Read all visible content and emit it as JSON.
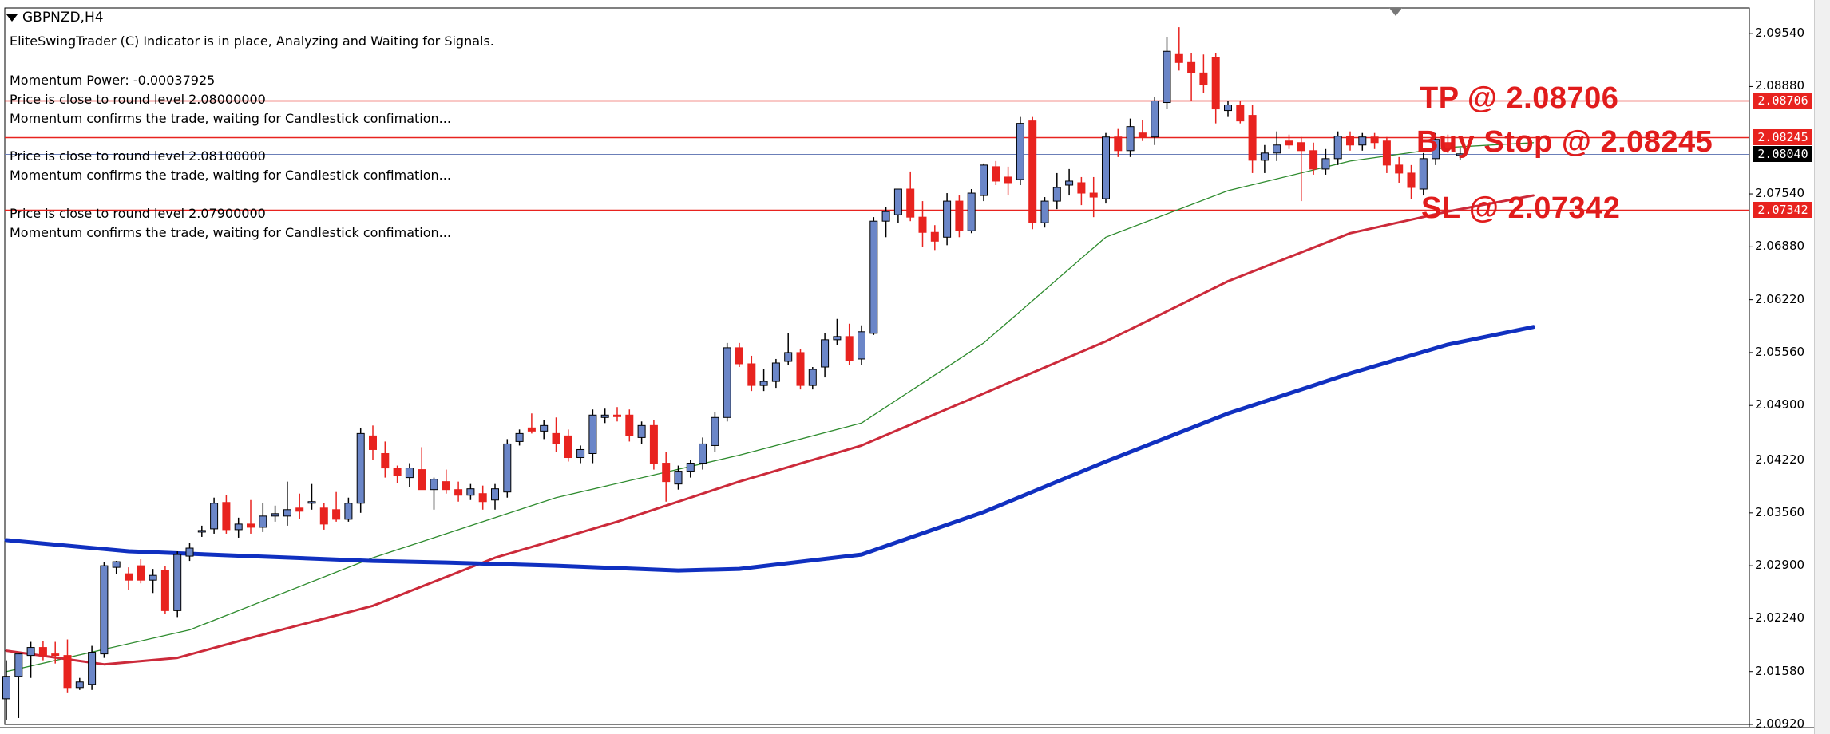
{
  "chart": {
    "symbol": "GBPNZD,H4",
    "comments": {
      "header": "EliteSwingTrader (C) Indicator is in place, Analyzing and Waiting for Signals.",
      "momentum": "Momentum Power: -0.00037925",
      "level1": "Price is close to round level 2.08000000",
      "level1_note": "Momentum confirms the trade, waiting for Candlestick confimation...",
      "level2": "Price is close to round level 2.08100000",
      "level2_note": "Momentum confirms the trade, waiting for Candlestick confimation...",
      "level3": "Price is close to round level 2.07900000",
      "level3_note": "Momentum confirms the trade, waiting for Candlestick confimation..."
    },
    "annotations": {
      "tp": "TP @ 2.08706",
      "buy_stop": "Buy Stop @ 2.08245",
      "sl": "SL @ 2.07342"
    },
    "price_tags": {
      "tp": "2.08706",
      "buy_stop": "2.08245",
      "current": "2.08040",
      "sl": "2.07342"
    },
    "y_axis_labels": [
      "2.09540",
      "2.08880",
      "2.07540",
      "2.06880",
      "2.06220",
      "2.05560",
      "2.04900",
      "2.04220",
      "2.03560",
      "2.02900",
      "2.02240",
      "2.01580",
      "2.00920"
    ],
    "colors": {
      "bull": "#6b86c8",
      "bear": "#e8231f",
      "level_line": "#e8231f",
      "current_line": "#6b7fb8",
      "ma_fast": "#2e8b2e",
      "ma_mid": "#cc2a3a",
      "ma_slow": "#1030c0"
    }
  },
  "chart_data": {
    "type": "line",
    "title": "",
    "xlabel": "",
    "ylabel": "",
    "ylim": [
      2.0092,
      2.0986
    ],
    "y_ticks": [
      2.0954,
      2.0888,
      2.0754,
      2.0688,
      2.0622,
      2.0556,
      2.049,
      2.0422,
      2.0356,
      2.029,
      2.0224,
      2.0158,
      2.0092
    ],
    "horizontal_levels": [
      2.08706,
      2.08245,
      2.0804,
      2.07342
    ],
    "candles": [
      {
        "o": 2.0124,
        "h": 2.0172,
        "l": 2.0098,
        "c": 2.0152
      },
      {
        "o": 2.0152,
        "h": 2.0175,
        "l": 2.01,
        "c": 2.018
      },
      {
        "o": 2.0178,
        "h": 2.0195,
        "l": 2.015,
        "c": 2.0188
      },
      {
        "o": 2.0188,
        "h": 2.0196,
        "l": 2.0172,
        "c": 2.0178
      },
      {
        "o": 2.018,
        "h": 2.0195,
        "l": 2.0168,
        "c": 2.0178
      },
      {
        "o": 2.0178,
        "h": 2.0198,
        "l": 2.0132,
        "c": 2.0138
      },
      {
        "o": 2.0138,
        "h": 2.015,
        "l": 2.0135,
        "c": 2.0145
      },
      {
        "o": 2.0142,
        "h": 2.019,
        "l": 2.0135,
        "c": 2.0182
      },
      {
        "o": 2.018,
        "h": 2.0295,
        "l": 2.0175,
        "c": 2.029
      },
      {
        "o": 2.0288,
        "h": 2.0296,
        "l": 2.028,
        "c": 2.0295
      },
      {
        "o": 2.028,
        "h": 2.0288,
        "l": 2.026,
        "c": 2.0272
      },
      {
        "o": 2.029,
        "h": 2.0298,
        "l": 2.0268,
        "c": 2.0272
      },
      {
        "o": 2.0272,
        "h": 2.0286,
        "l": 2.0256,
        "c": 2.0278
      },
      {
        "o": 2.0284,
        "h": 2.029,
        "l": 2.023,
        "c": 2.0234
      },
      {
        "o": 2.0234,
        "h": 2.0308,
        "l": 2.0226,
        "c": 2.0304
      },
      {
        "o": 2.0302,
        "h": 2.0318,
        "l": 2.0296,
        "c": 2.0312
      },
      {
        "o": 2.0332,
        "h": 2.034,
        "l": 2.0326,
        "c": 2.0334
      },
      {
        "o": 2.0336,
        "h": 2.0375,
        "l": 2.033,
        "c": 2.0368
      },
      {
        "o": 2.0369,
        "h": 2.0378,
        "l": 2.033,
        "c": 2.0335
      },
      {
        "o": 2.0335,
        "h": 2.035,
        "l": 2.0325,
        "c": 2.0342
      },
      {
        "o": 2.0342,
        "h": 2.0372,
        "l": 2.033,
        "c": 2.0338
      },
      {
        "o": 2.0338,
        "h": 2.0368,
        "l": 2.0332,
        "c": 2.0352
      },
      {
        "o": 2.0352,
        "h": 2.0365,
        "l": 2.0345,
        "c": 2.0355
      },
      {
        "o": 2.0352,
        "h": 2.0395,
        "l": 2.034,
        "c": 2.036
      },
      {
        "o": 2.0362,
        "h": 2.038,
        "l": 2.0348,
        "c": 2.0358
      },
      {
        "o": 2.0368,
        "h": 2.0392,
        "l": 2.036,
        "c": 2.037
      },
      {
        "o": 2.0362,
        "h": 2.0368,
        "l": 2.0335,
        "c": 2.0342
      },
      {
        "o": 2.036,
        "h": 2.0382,
        "l": 2.0345,
        "c": 2.0348
      },
      {
        "o": 2.0348,
        "h": 2.0375,
        "l": 2.0345,
        "c": 2.0368
      },
      {
        "o": 2.0368,
        "h": 2.0462,
        "l": 2.0356,
        "c": 2.0455
      },
      {
        "o": 2.0452,
        "h": 2.0465,
        "l": 2.0422,
        "c": 2.0435
      },
      {
        "o": 2.043,
        "h": 2.0445,
        "l": 2.04,
        "c": 2.0412
      },
      {
        "o": 2.0412,
        "h": 2.0415,
        "l": 2.0393,
        "c": 2.0403
      },
      {
        "o": 2.04,
        "h": 2.0418,
        "l": 2.0388,
        "c": 2.0412
      },
      {
        "o": 2.041,
        "h": 2.0438,
        "l": 2.0392,
        "c": 2.0385
      },
      {
        "o": 2.0385,
        "h": 2.04,
        "l": 2.036,
        "c": 2.0398
      },
      {
        "o": 2.0395,
        "h": 2.041,
        "l": 2.038,
        "c": 2.0385
      },
      {
        "o": 2.0385,
        "h": 2.0395,
        "l": 2.037,
        "c": 2.0378
      },
      {
        "o": 2.0378,
        "h": 2.0392,
        "l": 2.0372,
        "c": 2.0386
      },
      {
        "o": 2.038,
        "h": 2.039,
        "l": 2.036,
        "c": 2.037
      },
      {
        "o": 2.0372,
        "h": 2.0392,
        "l": 2.036,
        "c": 2.0386
      },
      {
        "o": 2.0382,
        "h": 2.0448,
        "l": 2.0375,
        "c": 2.0442
      },
      {
        "o": 2.0445,
        "h": 2.046,
        "l": 2.044,
        "c": 2.0455
      },
      {
        "o": 2.0462,
        "h": 2.048,
        "l": 2.0455,
        "c": 2.0458
      },
      {
        "o": 2.0458,
        "h": 2.0472,
        "l": 2.0448,
        "c": 2.0465
      },
      {
        "o": 2.0455,
        "h": 2.0475,
        "l": 2.0432,
        "c": 2.0442
      },
      {
        "o": 2.0452,
        "h": 2.046,
        "l": 2.042,
        "c": 2.0425
      },
      {
        "o": 2.0425,
        "h": 2.044,
        "l": 2.0418,
        "c": 2.0435
      },
      {
        "o": 2.043,
        "h": 2.0485,
        "l": 2.0418,
        "c": 2.0478
      },
      {
        "o": 2.0475,
        "h": 2.0486,
        "l": 2.0468,
        "c": 2.0478
      },
      {
        "o": 2.0478,
        "h": 2.0488,
        "l": 2.047,
        "c": 2.0476
      },
      {
        "o": 2.0478,
        "h": 2.0485,
        "l": 2.0445,
        "c": 2.0452
      },
      {
        "o": 2.045,
        "h": 2.047,
        "l": 2.0442,
        "c": 2.0465
      },
      {
        "o": 2.0465,
        "h": 2.0472,
        "l": 2.041,
        "c": 2.0418
      },
      {
        "o": 2.0418,
        "h": 2.0432,
        "l": 2.037,
        "c": 2.0395
      },
      {
        "o": 2.0392,
        "h": 2.0415,
        "l": 2.0385,
        "c": 2.0408
      },
      {
        "o": 2.0408,
        "h": 2.0422,
        "l": 2.04,
        "c": 2.0418
      },
      {
        "o": 2.0418,
        "h": 2.045,
        "l": 2.041,
        "c": 2.0442
      },
      {
        "o": 2.044,
        "h": 2.0482,
        "l": 2.0432,
        "c": 2.0475
      },
      {
        "o": 2.0475,
        "h": 2.0568,
        "l": 2.047,
        "c": 2.0562
      },
      {
        "o": 2.0562,
        "h": 2.0568,
        "l": 2.0538,
        "c": 2.0542
      },
      {
        "o": 2.0542,
        "h": 2.0552,
        "l": 2.0508,
        "c": 2.0515
      },
      {
        "o": 2.0515,
        "h": 2.0535,
        "l": 2.0508,
        "c": 2.052
      },
      {
        "o": 2.052,
        "h": 2.0548,
        "l": 2.0512,
        "c": 2.0543
      },
      {
        "o": 2.0545,
        "h": 2.058,
        "l": 2.054,
        "c": 2.0556
      },
      {
        "o": 2.0556,
        "h": 2.056,
        "l": 2.051,
        "c": 2.0515
      },
      {
        "o": 2.0515,
        "h": 2.0538,
        "l": 2.051,
        "c": 2.0535
      },
      {
        "o": 2.0538,
        "h": 2.058,
        "l": 2.0525,
        "c": 2.0572
      },
      {
        "o": 2.0572,
        "h": 2.0598,
        "l": 2.0565,
        "c": 2.0576
      },
      {
        "o": 2.0576,
        "h": 2.0592,
        "l": 2.054,
        "c": 2.0546
      },
      {
        "o": 2.0548,
        "h": 2.059,
        "l": 2.054,
        "c": 2.0582
      },
      {
        "o": 2.058,
        "h": 2.0725,
        "l": 2.0578,
        "c": 2.072
      },
      {
        "o": 2.072,
        "h": 2.0738,
        "l": 2.07,
        "c": 2.0732
      },
      {
        "o": 2.0728,
        "h": 2.076,
        "l": 2.0718,
        "c": 2.076
      },
      {
        "o": 2.076,
        "h": 2.0782,
        "l": 2.072,
        "c": 2.0725
      },
      {
        "o": 2.0725,
        "h": 2.0745,
        "l": 2.0688,
        "c": 2.0706
      },
      {
        "o": 2.0706,
        "h": 2.0715,
        "l": 2.0684,
        "c": 2.0695
      },
      {
        "o": 2.07,
        "h": 2.0755,
        "l": 2.069,
        "c": 2.0745
      },
      {
        "o": 2.0745,
        "h": 2.0752,
        "l": 2.07,
        "c": 2.0708
      },
      {
        "o": 2.0708,
        "h": 2.076,
        "l": 2.0705,
        "c": 2.0755
      },
      {
        "o": 2.0752,
        "h": 2.0792,
        "l": 2.0745,
        "c": 2.079
      },
      {
        "o": 2.0788,
        "h": 2.0795,
        "l": 2.0765,
        "c": 2.077
      },
      {
        "o": 2.0775,
        "h": 2.0788,
        "l": 2.0752,
        "c": 2.0768
      },
      {
        "o": 2.0772,
        "h": 2.085,
        "l": 2.0765,
        "c": 2.0842
      },
      {
        "o": 2.0845,
        "h": 2.085,
        "l": 2.071,
        "c": 2.0718
      },
      {
        "o": 2.0718,
        "h": 2.075,
        "l": 2.0712,
        "c": 2.0745
      },
      {
        "o": 2.0745,
        "h": 2.078,
        "l": 2.0735,
        "c": 2.0762
      },
      {
        "o": 2.0765,
        "h": 2.0785,
        "l": 2.0752,
        "c": 2.077
      },
      {
        "o": 2.0768,
        "h": 2.0775,
        "l": 2.074,
        "c": 2.0755
      },
      {
        "o": 2.0755,
        "h": 2.0775,
        "l": 2.0725,
        "c": 2.075
      },
      {
        "o": 2.0748,
        "h": 2.083,
        "l": 2.0742,
        "c": 2.0825
      },
      {
        "o": 2.0825,
        "h": 2.0835,
        "l": 2.08,
        "c": 2.0808
      },
      {
        "o": 2.0808,
        "h": 2.0848,
        "l": 2.08,
        "c": 2.0838
      },
      {
        "o": 2.083,
        "h": 2.0846,
        "l": 2.082,
        "c": 2.0825
      },
      {
        "o": 2.0825,
        "h": 2.0875,
        "l": 2.0815,
        "c": 2.087
      },
      {
        "o": 2.0868,
        "h": 2.095,
        "l": 2.086,
        "c": 2.0932
      },
      {
        "o": 2.0928,
        "h": 2.0962,
        "l": 2.0908,
        "c": 2.0918
      },
      {
        "o": 2.0918,
        "h": 2.093,
        "l": 2.087,
        "c": 2.0905
      },
      {
        "o": 2.0905,
        "h": 2.0928,
        "l": 2.088,
        "c": 2.089
      },
      {
        "o": 2.0924,
        "h": 2.093,
        "l": 2.0842,
        "c": 2.086
      },
      {
        "o": 2.0858,
        "h": 2.087,
        "l": 2.085,
        "c": 2.0865
      },
      {
        "o": 2.0865,
        "h": 2.087,
        "l": 2.0842,
        "c": 2.0845
      },
      {
        "o": 2.0852,
        "h": 2.0865,
        "l": 2.078,
        "c": 2.0796
      },
      {
        "o": 2.0796,
        "h": 2.0815,
        "l": 2.078,
        "c": 2.0805
      },
      {
        "o": 2.0805,
        "h": 2.0832,
        "l": 2.0795,
        "c": 2.0815
      },
      {
        "o": 2.082,
        "h": 2.0828,
        "l": 2.081,
        "c": 2.0815
      },
      {
        "o": 2.0818,
        "h": 2.0825,
        "l": 2.0745,
        "c": 2.0808
      },
      {
        "o": 2.0808,
        "h": 2.0818,
        "l": 2.0778,
        "c": 2.0785
      },
      {
        "o": 2.0785,
        "h": 2.081,
        "l": 2.0778,
        "c": 2.0798
      },
      {
        "o": 2.0798,
        "h": 2.0832,
        "l": 2.079,
        "c": 2.0826
      },
      {
        "o": 2.0826,
        "h": 2.0832,
        "l": 2.0808,
        "c": 2.0815
      },
      {
        "o": 2.0815,
        "h": 2.083,
        "l": 2.0808,
        "c": 2.0825
      },
      {
        "o": 2.0825,
        "h": 2.083,
        "l": 2.081,
        "c": 2.0818
      },
      {
        "o": 2.082,
        "h": 2.0825,
        "l": 2.078,
        "c": 2.079
      },
      {
        "o": 2.079,
        "h": 2.08,
        "l": 2.0768,
        "c": 2.078
      },
      {
        "o": 2.078,
        "h": 2.079,
        "l": 2.0748,
        "c": 2.0762
      },
      {
        "o": 2.076,
        "h": 2.0805,
        "l": 2.0752,
        "c": 2.0798
      },
      {
        "o": 2.0798,
        "h": 2.083,
        "l": 2.079,
        "c": 2.0822
      },
      {
        "o": 2.0818,
        "h": 2.0828,
        "l": 2.0805,
        "c": 2.081
      },
      {
        "o": 2.0802,
        "h": 2.0812,
        "l": 2.0796,
        "c": 2.0804
      }
    ],
    "series": [
      {
        "x": [
          0,
          15,
          30,
          45,
          60,
          70,
          80,
          90,
          100,
          110,
          118,
          125
        ],
        "values": [
          2.0158,
          2.021,
          2.03,
          2.0375,
          2.0428,
          2.0468,
          2.0568,
          2.07,
          2.0758,
          2.0795,
          2.0812,
          2.0818
        ]
      },
      {
        "x": [
          0,
          8,
          14,
          20,
          30,
          40,
          50,
          60,
          70,
          80,
          90,
          100,
          110,
          118,
          125
        ],
        "values": [
          2.0184,
          2.0167,
          2.0175,
          2.02,
          2.024,
          2.03,
          2.0345,
          2.0395,
          2.044,
          2.0505,
          2.057,
          2.0645,
          2.0705,
          2.0732,
          2.0752
        ]
      },
      {
        "x": [
          0,
          10,
          20,
          30,
          36,
          45,
          55,
          60,
          70,
          80,
          90,
          100,
          110,
          118,
          125
        ],
        "values": [
          2.0322,
          2.0308,
          2.0302,
          2.0296,
          2.0294,
          2.029,
          2.0284,
          2.0286,
          2.0304,
          2.0357,
          2.042,
          2.048,
          2.053,
          2.0566,
          2.0588
        ]
      }
    ]
  }
}
